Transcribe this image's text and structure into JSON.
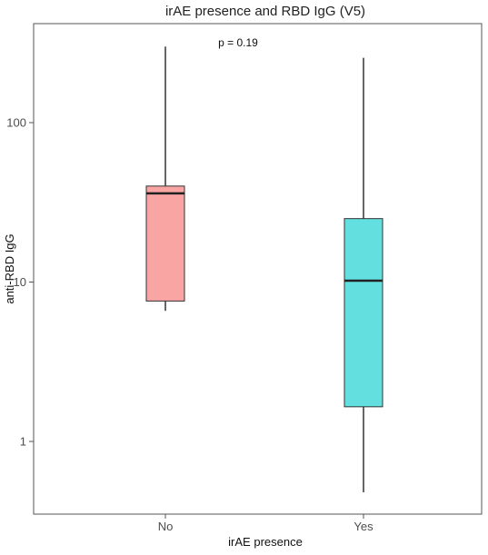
{
  "chart_data": {
    "type": "boxplot",
    "title": "irAE presence and RBD IgG (V5)",
    "xlabel": "irAE presence",
    "ylabel": "anti-RBD IgG",
    "y_scale": "log10",
    "ylim": [
      0.4,
      400
    ],
    "y_ticks": [
      1,
      10,
      100
    ],
    "y_tick_labels": [
      "1",
      "10",
      "100"
    ],
    "categories": [
      "No",
      "Yes"
    ],
    "boxes": [
      {
        "category": "No",
        "min": 6.6,
        "q1": 7.6,
        "median": 36,
        "q3": 40,
        "max": 300,
        "color": "#F8A5A4"
      },
      {
        "category": "Yes",
        "min": 0.48,
        "q1": 1.65,
        "median": 10.2,
        "q3": 25,
        "max": 255,
        "color": "#63DFE0"
      }
    ],
    "annotations": [
      {
        "text": "p = 0.19"
      }
    ],
    "grid": false,
    "legend": "none"
  }
}
